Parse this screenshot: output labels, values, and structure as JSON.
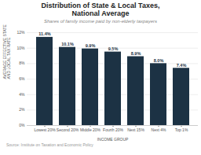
{
  "chart_data": {
    "type": "bar",
    "title": "Distribution of State & Local Taxes,\nNational Average",
    "subtitle": "Shares of family income paid by non-elderly taxpayers",
    "xlabel": "INCOME GROUP",
    "ylabel": "AVERAGE EFFECTIVE STATE AND LOCAL TAX RATE",
    "source": "Source: Institute on Taxation and Economic Policy",
    "categories": [
      "Lowest 20%",
      "Second 20%",
      "Middle 20%",
      "Fourth 20%",
      "Next 15%",
      "Next 4%",
      "Top 1%"
    ],
    "values": [
      11.4,
      10.1,
      9.9,
      9.5,
      8.9,
      8.0,
      7.4
    ],
    "value_labels": [
      "11.4%",
      "10.1%",
      "9.9%",
      "9.5%",
      "8.9%",
      "8.0%",
      "7.4%"
    ],
    "data_labels": true,
    "color": "#1c3244",
    "ylim": [
      0,
      12
    ],
    "yticks": [
      {
        "value": 0,
        "label": "0%"
      },
      {
        "value": 2,
        "label": "2%"
      },
      {
        "value": 4,
        "label": "4%"
      },
      {
        "value": 6,
        "label": "6%"
      },
      {
        "value": 8,
        "label": "8%"
      },
      {
        "value": 10,
        "label": "10%"
      },
      {
        "value": 12,
        "label": "12%"
      }
    ],
    "grid": true
  }
}
